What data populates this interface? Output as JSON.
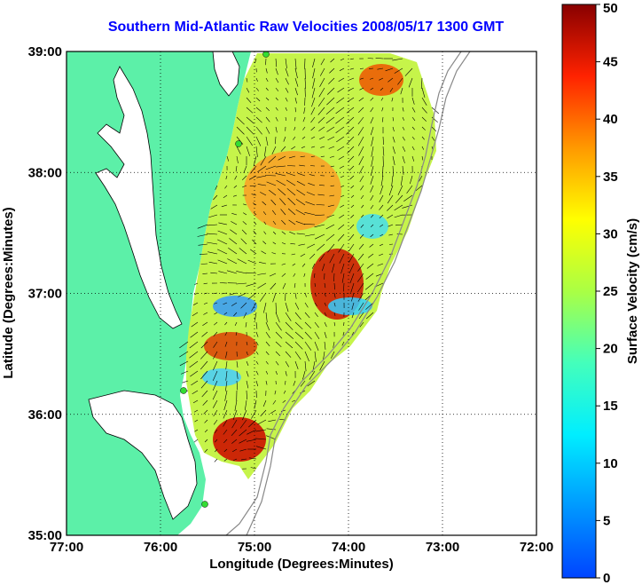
{
  "title": "Southern Mid-Atlantic Raw Velocities 2008/05/17 1300 GMT",
  "map": {
    "xlabel": "Longitude (Degrees:Minutes)",
    "ylabel": "Latitude (Degrees:Minutes)",
    "x_ticks": [
      "77:00",
      "76:00",
      "75:00",
      "74:00",
      "73:00",
      "72:00"
    ],
    "y_ticks": [
      "39:00",
      "38:00",
      "37:00",
      "36:00",
      "35:00"
    ],
    "lon_range": [
      -77,
      -72
    ],
    "lat_range": [
      35,
      39
    ],
    "land_color": "#5cf0a8",
    "station_color": "#33dd33"
  },
  "colorbar": {
    "label": "Surface Velocity (cm/s)",
    "ticks": [
      "50",
      "45",
      "40",
      "35",
      "30",
      "25",
      "20",
      "15",
      "10",
      "5",
      "0"
    ],
    "range": [
      0,
      50
    ]
  }
}
